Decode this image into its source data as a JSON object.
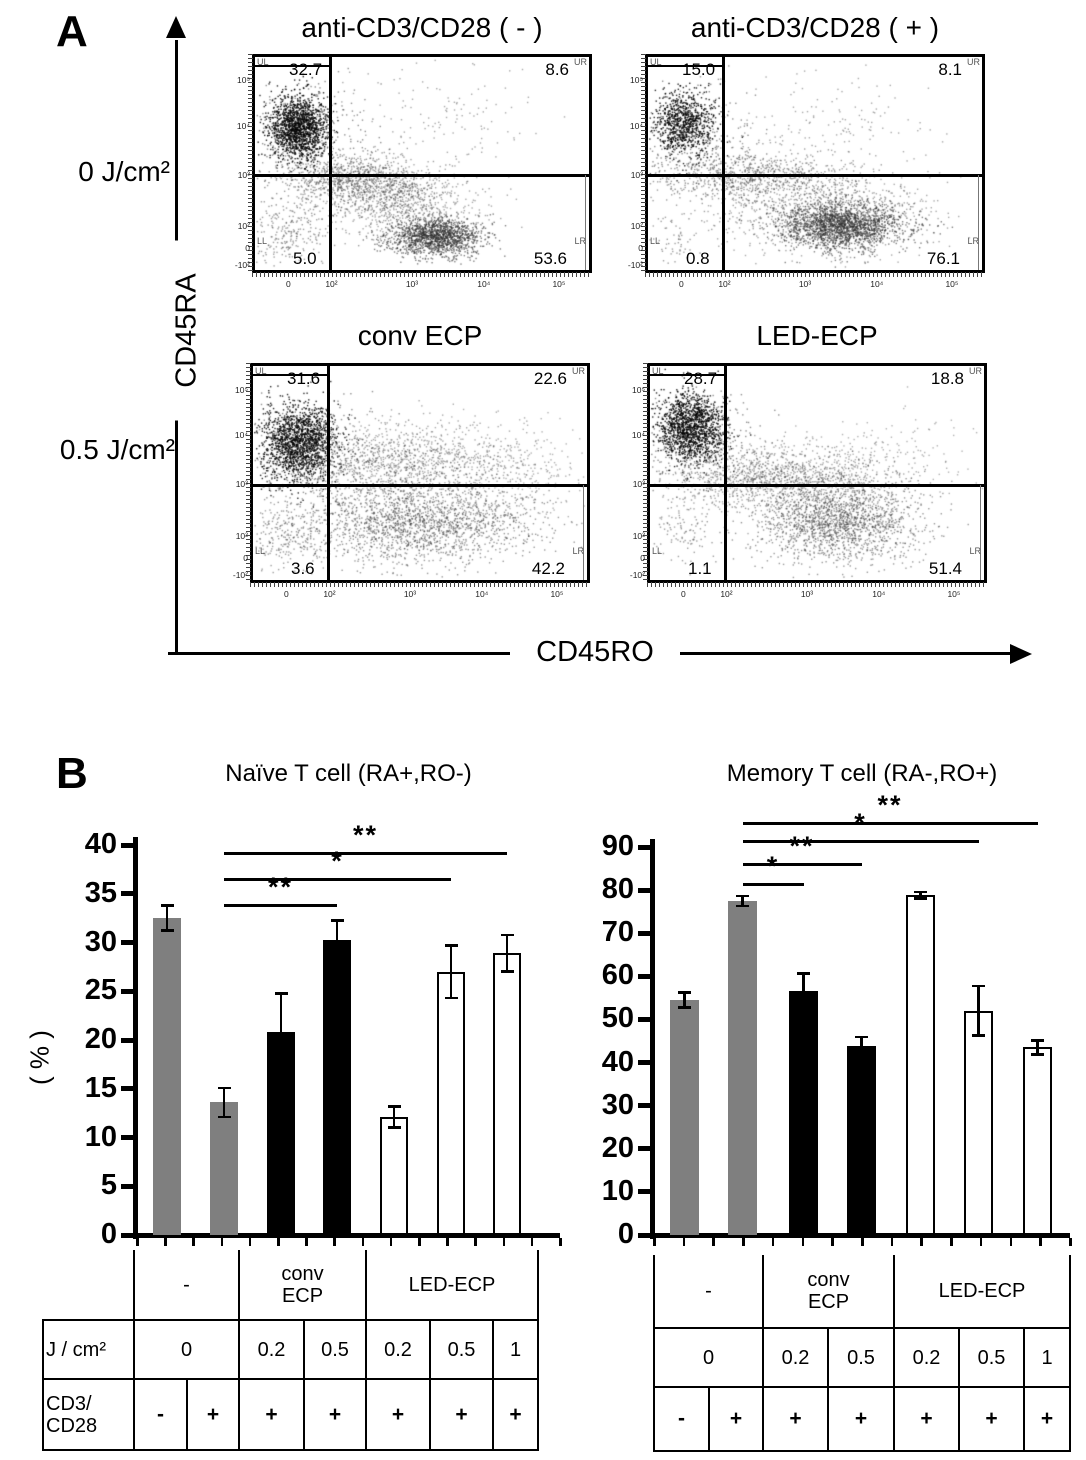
{
  "panelA": {
    "label": "A"
  },
  "panelB": {
    "label": "B"
  },
  "chart_data": [
    {
      "type": "scatter",
      "name": "flow-cytometry-quadrant-plots",
      "xlabel": "CD45RO",
      "ylabel": "CD45RA",
      "row_labels": [
        "0 J/cm²",
        "0.5 J/cm²"
      ],
      "x_ticks": [
        "0",
        "10²",
        "10³",
        "10⁴",
        "10⁵"
      ],
      "y_ticks": [
        "10⁵",
        "10⁴",
        "10³",
        "10²",
        "0",
        "-10²"
      ],
      "corner_labels": {
        "UL": "UL",
        "UR": "UR",
        "LL": "LL",
        "LR": "LR"
      },
      "plots": [
        {
          "title": "anti-CD3/CD28 ( - )",
          "quadrant_percent": {
            "UL": "32.7",
            "UR": "8.6",
            "LL": "5.0",
            "LR": "53.6"
          },
          "clusters": [
            {
              "cx": 0.13,
              "cy": 0.33,
              "sx": 0.045,
              "sy": 0.075,
              "n": 1500,
              "c": "#000000",
              "a": 0.85
            },
            {
              "cx": 0.15,
              "cy": 0.4,
              "sx": 0.09,
              "sy": 0.13,
              "n": 400,
              "c": "#222222",
              "a": 0.5
            },
            {
              "cx": 0.3,
              "cy": 0.57,
              "sx": 0.1,
              "sy": 0.055,
              "n": 800,
              "c": "#3d3d3d",
              "a": 0.5
            },
            {
              "cx": 0.43,
              "cy": 0.68,
              "sx": 0.12,
              "sy": 0.08,
              "n": 900,
              "c": "#3d3d3d",
              "a": 0.45
            },
            {
              "cx": 0.54,
              "cy": 0.84,
              "sx": 0.07,
              "sy": 0.045,
              "n": 1500,
              "c": "#2b2b2b",
              "a": 0.6
            },
            {
              "cx": 0.1,
              "cy": 0.82,
              "sx": 0.06,
              "sy": 0.09,
              "n": 240,
              "c": "#3d3d3d",
              "a": 0.5
            },
            {
              "cx": 0.55,
              "cy": 0.3,
              "sx": 0.17,
              "sy": 0.13,
              "n": 140,
              "c": "#3d3d3d",
              "a": 0.45
            }
          ]
        },
        {
          "title": "anti-CD3/CD28 ( + )",
          "quadrant_percent": {
            "UL": "15.0",
            "UR": "8.1",
            "LL": "0.8",
            "LR": "76.1"
          },
          "clusters": [
            {
              "cx": 0.105,
              "cy": 0.31,
              "sx": 0.045,
              "sy": 0.075,
              "n": 850,
              "c": "#000000",
              "a": 0.85
            },
            {
              "cx": 0.13,
              "cy": 0.38,
              "sx": 0.08,
              "sy": 0.12,
              "n": 300,
              "c": "#222222",
              "a": 0.5
            },
            {
              "cx": 0.3,
              "cy": 0.56,
              "sx": 0.13,
              "sy": 0.06,
              "n": 800,
              "c": "#3d3d3d",
              "a": 0.5
            },
            {
              "cx": 0.58,
              "cy": 0.79,
              "sx": 0.09,
              "sy": 0.055,
              "n": 2000,
              "c": "#2b2b2b",
              "a": 0.6
            },
            {
              "cx": 0.52,
              "cy": 0.72,
              "sx": 0.16,
              "sy": 0.1,
              "n": 900,
              "c": "#3d3d3d",
              "a": 0.45
            },
            {
              "cx": 0.08,
              "cy": 0.85,
              "sx": 0.05,
              "sy": 0.06,
              "n": 60,
              "c": "#3d3d3d",
              "a": 0.5
            },
            {
              "cx": 0.55,
              "cy": 0.33,
              "sx": 0.17,
              "sy": 0.12,
              "n": 150,
              "c": "#3d3d3d",
              "a": 0.45
            }
          ]
        },
        {
          "title": "conv ECP",
          "quadrant_percent": {
            "UL": "31.6",
            "UR": "22.6",
            "LL": "3.6",
            "LR": "42.2"
          },
          "clusters": [
            {
              "cx": 0.135,
              "cy": 0.35,
              "sx": 0.055,
              "sy": 0.09,
              "n": 1600,
              "c": "#000000",
              "a": 0.85
            },
            {
              "cx": 0.17,
              "cy": 0.42,
              "sx": 0.1,
              "sy": 0.13,
              "n": 350,
              "c": "#222222",
              "a": 0.5
            },
            {
              "cx": 0.44,
              "cy": 0.44,
              "sx": 0.17,
              "sy": 0.09,
              "n": 1300,
              "c": "#3d3d3d",
              "a": 0.45
            },
            {
              "cx": 0.5,
              "cy": 0.73,
              "sx": 0.17,
              "sy": 0.095,
              "n": 1900,
              "c": "#333333",
              "a": 0.5
            },
            {
              "cx": 0.1,
              "cy": 0.8,
              "sx": 0.06,
              "sy": 0.09,
              "n": 220,
              "c": "#3d3d3d",
              "a": 0.5
            },
            {
              "cx": 0.78,
              "cy": 0.5,
              "sx": 0.1,
              "sy": 0.12,
              "n": 250,
              "c": "#3d3d3d",
              "a": 0.4
            }
          ]
        },
        {
          "title": "LED-ECP",
          "quadrant_percent": {
            "UL": "28.7",
            "UR": "18.8",
            "LL": "1.1",
            "LR": "51.4"
          },
          "clusters": [
            {
              "cx": 0.12,
              "cy": 0.28,
              "sx": 0.05,
              "sy": 0.08,
              "n": 1400,
              "c": "#000000",
              "a": 0.85
            },
            {
              "cx": 0.15,
              "cy": 0.36,
              "sx": 0.09,
              "sy": 0.12,
              "n": 350,
              "c": "#222222",
              "a": 0.5
            },
            {
              "cx": 0.38,
              "cy": 0.52,
              "sx": 0.16,
              "sy": 0.075,
              "n": 1300,
              "c": "#3d3d3d",
              "a": 0.45
            },
            {
              "cx": 0.56,
              "cy": 0.72,
              "sx": 0.12,
              "sy": 0.095,
              "n": 1800,
              "c": "#333333",
              "a": 0.5
            },
            {
              "cx": 0.1,
              "cy": 0.77,
              "sx": 0.06,
              "sy": 0.08,
              "n": 110,
              "c": "#3d3d3d",
              "a": 0.5
            },
            {
              "cx": 0.7,
              "cy": 0.42,
              "sx": 0.13,
              "sy": 0.1,
              "n": 180,
              "c": "#3d3d3d",
              "a": 0.4
            }
          ]
        }
      ]
    },
    {
      "type": "bar",
      "title": "Naïve T cell (RA+,RO-)",
      "ylabel": "( % )",
      "ylim": [
        0,
        40
      ],
      "ytick_step": 5,
      "grid": false,
      "categories": [
        "0 (CD3/CD28 -)",
        "0 (CD3/CD28 +)",
        "conv ECP 0.2",
        "conv ECP 0.5",
        "LED-ECP 0.2",
        "LED-ECP 0.5",
        "LED-ECP 1"
      ],
      "values": [
        32.5,
        13.6,
        20.8,
        30.3,
        12.1,
        27.0,
        28.9
      ],
      "errors": [
        1.3,
        1.5,
        4.0,
        2.0,
        1.1,
        2.7,
        1.9
      ],
      "bar_colors": [
        "gray",
        "gray",
        "black",
        "black",
        "white",
        "white",
        "white"
      ],
      "significance": [
        {
          "from": 1,
          "to": 6,
          "label": "**"
        },
        {
          "from": 1,
          "to": 5,
          "label": "*"
        },
        {
          "from": 1,
          "to": 3,
          "label": "**"
        }
      ],
      "table": {
        "row_headers": [
          "J / cm²",
          "CD3/\nCD28"
        ],
        "groups": [
          {
            "label": "-",
            "span": 2
          },
          {
            "label": "conv\nECP",
            "span": 2
          },
          {
            "label": "LED-ECP",
            "span": 3
          }
        ],
        "dose": [
          {
            "label": "0",
            "span": 2
          },
          {
            "label": "0.2",
            "span": 1
          },
          {
            "label": "0.5",
            "span": 1
          },
          {
            "label": "0.2",
            "span": 1
          },
          {
            "label": "0.5",
            "span": 1
          },
          {
            "label": "1",
            "span": 1
          }
        ],
        "cd3_cd28": [
          "-",
          "+",
          "+",
          "+",
          "+",
          "+",
          "+"
        ]
      }
    },
    {
      "type": "bar",
      "title": "Memory T cell (RA-,RO+)",
      "ylabel": "",
      "ylim": [
        0,
        90
      ],
      "ytick_step": 10,
      "grid": false,
      "categories": [
        "0 (CD3/CD28 -)",
        "0 (CD3/CD28 +)",
        "conv ECP 0.2",
        "conv ECP 0.5",
        "LED-ECP 0.2",
        "LED-ECP 0.5",
        "LED-ECP 1"
      ],
      "values": [
        54.5,
        77.5,
        56.7,
        43.8,
        78.8,
        52.0,
        43.5
      ],
      "errors": [
        1.8,
        1.2,
        4.0,
        2.2,
        0.8,
        5.8,
        1.7
      ],
      "bar_colors": [
        "gray",
        "gray",
        "black",
        "black",
        "white",
        "white",
        "white"
      ],
      "significance": [
        {
          "from": 1,
          "to": 6,
          "label": "**"
        },
        {
          "from": 1,
          "to": 5,
          "label": "*"
        },
        {
          "from": 1,
          "to": 3,
          "label": "**"
        },
        {
          "from": 1,
          "to": 2,
          "label": "*"
        }
      ],
      "table": {
        "groups": [
          {
            "label": "-",
            "span": 2
          },
          {
            "label": "conv\nECP",
            "span": 2
          },
          {
            "label": "LED-ECP",
            "span": 3
          }
        ],
        "dose": [
          {
            "label": "0",
            "span": 2
          },
          {
            "label": "0.2",
            "span": 1
          },
          {
            "label": "0.5",
            "span": 1
          },
          {
            "label": "0.2",
            "span": 1
          },
          {
            "label": "0.5",
            "span": 1
          },
          {
            "label": "1",
            "span": 1
          }
        ],
        "cd3_cd28": [
          "-",
          "+",
          "+",
          "+",
          "+",
          "+",
          "+"
        ]
      }
    }
  ],
  "colors": {
    "bar_gray": "#7f7f7f",
    "bar_black": "#000000",
    "bar_white": "#ffffff",
    "ink": "#000000"
  }
}
